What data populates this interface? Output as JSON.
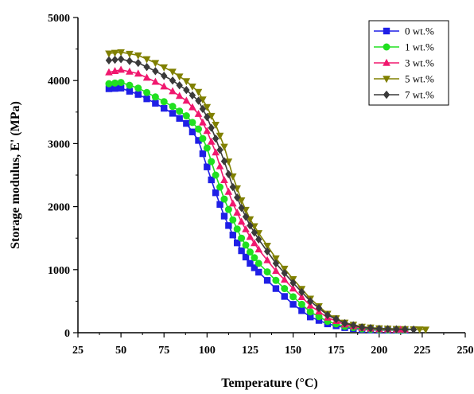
{
  "chart_data": {
    "type": "line",
    "title": "",
    "xlabel": "Temperature (°C)",
    "ylabel": "Storage modulus, E' (MPa)",
    "xlim": [
      25,
      250
    ],
    "ylim": [
      0,
      5000
    ],
    "xticks": [
      25,
      50,
      75,
      100,
      125,
      150,
      175,
      200,
      225,
      250
    ],
    "yticks": [
      0,
      1000,
      2000,
      3000,
      4000,
      5000
    ],
    "xtick_labels": [
      "25",
      "50",
      "75",
      "100",
      "125",
      "150",
      "175",
      "200",
      "225",
      "250"
    ],
    "ytick_labels": [
      "0",
      "1000",
      "2000",
      "3000",
      "4000",
      "5000"
    ],
    "grid": false,
    "legend_position": "top-right",
    "series": [
      {
        "name": "0 wt.%",
        "color": "#1f1fe6",
        "marker": "square",
        "x": [
          43,
          50,
          60,
          70,
          80,
          88,
          95,
          100,
          105,
          110,
          115,
          120,
          125,
          130,
          140,
          150,
          160,
          170,
          180,
          190,
          200,
          210,
          215
        ],
        "y": [
          3870,
          3880,
          3780,
          3640,
          3480,
          3320,
          3050,
          2630,
          2220,
          1850,
          1550,
          1300,
          1100,
          960,
          700,
          450,
          250,
          140,
          80,
          50,
          40,
          40,
          40
        ]
      },
      {
        "name": "1 wt.%",
        "color": "#20e020",
        "marker": "circle",
        "x": [
          43,
          50,
          60,
          70,
          80,
          88,
          95,
          100,
          105,
          110,
          115,
          120,
          125,
          130,
          140,
          150,
          160,
          170,
          180,
          190,
          200,
          210,
          215
        ],
        "y": [
          3950,
          3970,
          3880,
          3740,
          3590,
          3440,
          3230,
          2930,
          2500,
          2120,
          1790,
          1500,
          1280,
          1100,
          830,
          570,
          330,
          180,
          100,
          60,
          45,
          45,
          45
        ]
      },
      {
        "name": "3 wt.%",
        "color": "#f0186e",
        "marker": "triangle-up",
        "x": [
          43,
          50,
          60,
          70,
          80,
          88,
          95,
          100,
          105,
          110,
          115,
          120,
          125,
          130,
          140,
          150,
          160,
          170,
          180,
          190,
          200,
          210,
          215
        ],
        "y": [
          4130,
          4170,
          4110,
          3980,
          3830,
          3680,
          3470,
          3200,
          2860,
          2420,
          2050,
          1760,
          1520,
          1320,
          980,
          700,
          430,
          240,
          130,
          75,
          55,
          50,
          50
        ]
      },
      {
        "name": "5 wt.%",
        "color": "#808000",
        "marker": "triangle-down",
        "x": [
          43,
          50,
          60,
          70,
          80,
          88,
          95,
          100,
          105,
          110,
          115,
          120,
          125,
          130,
          140,
          150,
          160,
          170,
          180,
          190,
          200,
          210,
          220,
          227
        ],
        "y": [
          4430,
          4450,
          4400,
          4280,
          4140,
          3990,
          3820,
          3580,
          3300,
          2950,
          2480,
          2100,
          1800,
          1580,
          1180,
          850,
          540,
          300,
          160,
          95,
          70,
          60,
          55,
          50
        ]
      },
      {
        "name": "7 wt.%",
        "color": "#3a3a3a",
        "marker": "diamond",
        "x": [
          43,
          50,
          60,
          70,
          80,
          88,
          95,
          100,
          105,
          110,
          115,
          120,
          125,
          130,
          140,
          150,
          160,
          170,
          180,
          190,
          200,
          210,
          220
        ],
        "y": [
          4320,
          4340,
          4280,
          4150,
          4000,
          3850,
          3680,
          3420,
          3080,
          2720,
          2310,
          1980,
          1700,
          1480,
          1100,
          790,
          500,
          280,
          150,
          85,
          60,
          55,
          50
        ]
      }
    ]
  }
}
